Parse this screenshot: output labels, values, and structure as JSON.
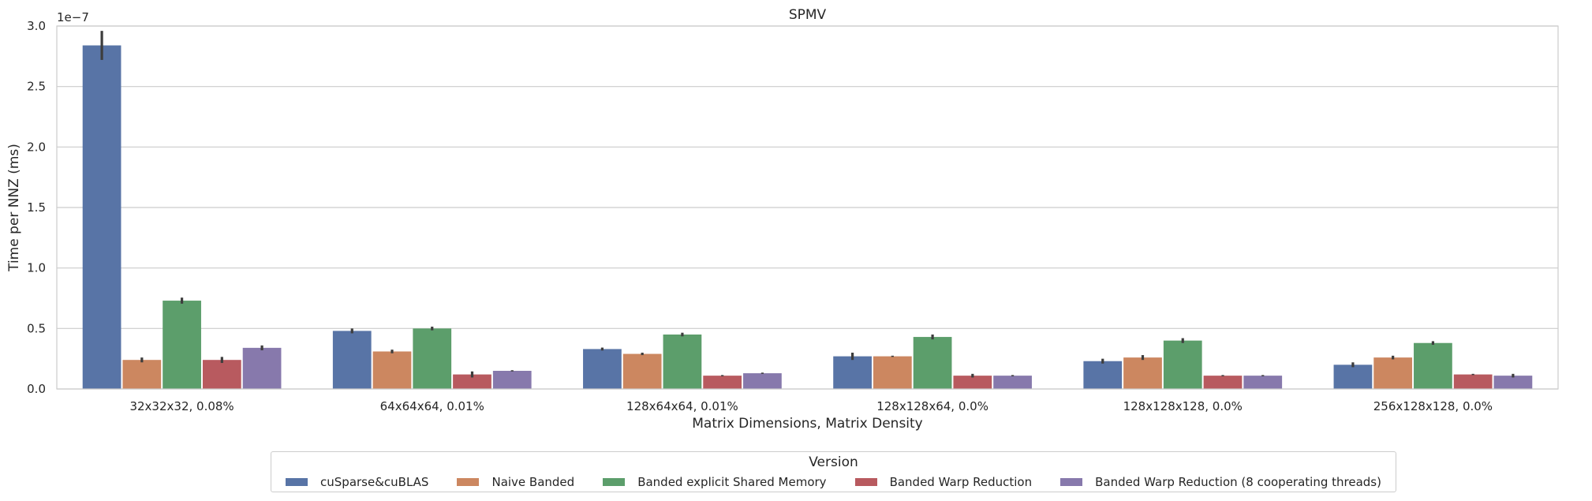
{
  "chart_data": {
    "type": "bar",
    "title": "SPMV",
    "xlabel": "Matrix Dimensions, Matrix Density",
    "ylabel": "Time per NNZ (ms)",
    "y_scale_label": "1e−7",
    "ylim": [
      0,
      3.0
    ],
    "yticks": [
      "0.0",
      "0.5",
      "1.0",
      "1.5",
      "2.0",
      "2.5",
      "3.0"
    ],
    "grid": "horizontal",
    "legend_placement": "bottom-center",
    "legend_title": "Version",
    "categories": [
      "32x32x32, 0.08%",
      "64x64x64, 0.01%",
      "128x64x64, 0.01%",
      "128x128x64, 0.0%",
      "128x128x128, 0.0%",
      "256x128x128, 0.0%"
    ],
    "series": [
      {
        "name": "cuSparse&cuBLAS",
        "color": "#5874a6",
        "values": [
          2.84,
          0.48,
          0.33,
          0.27,
          0.23,
          0.2
        ],
        "err": [
          0.12,
          0.02,
          0.012,
          0.03,
          0.02,
          0.02
        ]
      },
      {
        "name": "Naive Banded",
        "color": "#cc8760",
        "values": [
          0.24,
          0.31,
          0.29,
          0.27,
          0.26,
          0.26
        ],
        "err": [
          0.02,
          0.015,
          0.01,
          0.005,
          0.02,
          0.015
        ]
      },
      {
        "name": "Banded explicit Shared Memory",
        "color": "#5c9e6b",
        "values": [
          0.73,
          0.5,
          0.45,
          0.43,
          0.4,
          0.38
        ],
        "err": [
          0.025,
          0.015,
          0.015,
          0.02,
          0.02,
          0.015
        ]
      },
      {
        "name": "Banded Warp Reduction",
        "color": "#b85a5f",
        "values": [
          0.24,
          0.12,
          0.11,
          0.11,
          0.11,
          0.12
        ],
        "err": [
          0.025,
          0.025,
          0.005,
          0.015,
          0.005,
          0.005
        ]
      },
      {
        "name": "Banded Warp Reduction (8 cooperating threads)",
        "color": "#8779ac",
        "values": [
          0.34,
          0.15,
          0.13,
          0.11,
          0.11,
          0.11
        ],
        "err": [
          0.02,
          0.005,
          0.005,
          0.005,
          0.005,
          0.015
        ]
      }
    ]
  }
}
